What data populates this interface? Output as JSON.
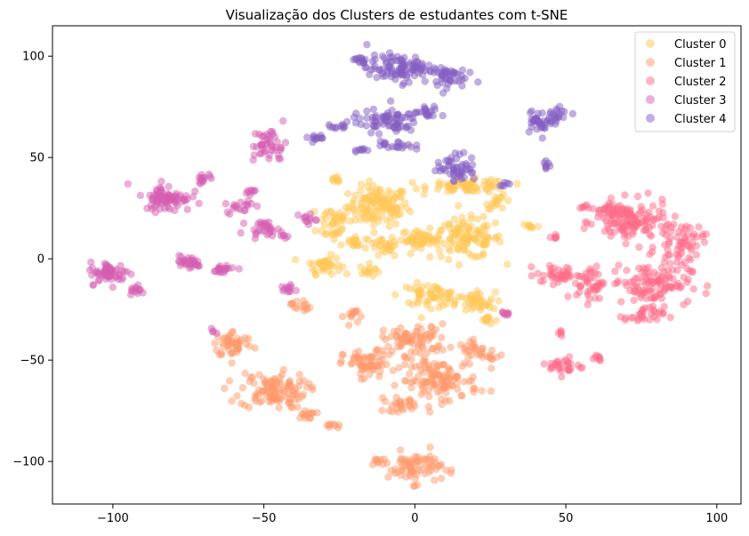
{
  "chart_data": {
    "type": "scatter",
    "title": "Visualização dos Clusters de estudantes com t-SNE",
    "xlabel": "",
    "ylabel": "",
    "xlim": [
      -120,
      108
    ],
    "ylim": [
      -121,
      115
    ],
    "x_ticks": [
      -100,
      -50,
      0,
      50,
      100
    ],
    "y_ticks": [
      -100,
      -50,
      0,
      50,
      100
    ],
    "grid": false,
    "legend": "top-right",
    "marker_alpha": 0.5,
    "series": [
      {
        "name": "Cluster 0",
        "color": "#ffc857",
        "blobs": [
          {
            "cx": -12,
            "cy": 26,
            "rx": 9,
            "ry": 9,
            "n": 120
          },
          {
            "cx": -27,
            "cy": 18,
            "rx": 5,
            "ry": 9,
            "n": 40
          },
          {
            "cx": -30,
            "cy": -3,
            "rx": 5,
            "ry": 4,
            "n": 40
          },
          {
            "cx": -15,
            "cy": -6,
            "rx": 3,
            "ry": 3,
            "n": 14
          },
          {
            "cx": -20,
            "cy": 8,
            "rx": 4,
            "ry": 3,
            "n": 20
          },
          {
            "cx": 2,
            "cy": 10,
            "rx": 6,
            "ry": 4,
            "n": 50
          },
          {
            "cx": 17,
            "cy": 10,
            "rx": 11,
            "ry": 9,
            "n": 110
          },
          {
            "cx": -10,
            "cy": 5,
            "rx": 4,
            "ry": 4,
            "n": 24
          },
          {
            "cx": 18,
            "cy": 36,
            "rx": 12,
            "ry": 3,
            "n": 70
          },
          {
            "cx": 28,
            "cy": 28,
            "rx": 4,
            "ry": 3,
            "n": 16
          },
          {
            "cx": 5,
            "cy": -18,
            "rx": 9,
            "ry": 5,
            "n": 60
          },
          {
            "cx": 20,
            "cy": -22,
            "rx": 6,
            "ry": 5,
            "n": 40
          },
          {
            "cx": 24,
            "cy": -30,
            "rx": 3,
            "ry": 2,
            "n": 12
          },
          {
            "cx": 38,
            "cy": 16,
            "rx": 3,
            "ry": 2,
            "n": 8
          },
          {
            "cx": -26,
            "cy": 39,
            "rx": 2,
            "ry": 2,
            "n": 8
          }
        ]
      },
      {
        "name": "Cluster 1",
        "color": "#ff9a6c",
        "blobs": [
          {
            "cx": -60,
            "cy": -42,
            "rx": 6,
            "ry": 6,
            "n": 50
          },
          {
            "cx": -47,
            "cy": -65,
            "rx": 10,
            "ry": 8,
            "n": 110
          },
          {
            "cx": -36,
            "cy": -77,
            "rx": 3,
            "ry": 2,
            "n": 14
          },
          {
            "cx": -27,
            "cy": -82,
            "rx": 2,
            "ry": 2,
            "n": 8
          },
          {
            "cx": -38,
            "cy": -23,
            "rx": 3,
            "ry": 3,
            "n": 14
          },
          {
            "cx": -16,
            "cy": -52,
            "rx": 7,
            "ry": 6,
            "n": 60
          },
          {
            "cx": 0,
            "cy": -40,
            "rx": 10,
            "ry": 7,
            "n": 80
          },
          {
            "cx": 8,
            "cy": -60,
            "rx": 12,
            "ry": 9,
            "n": 120
          },
          {
            "cx": -5,
            "cy": -72,
            "rx": 5,
            "ry": 3,
            "n": 25
          },
          {
            "cx": 20,
            "cy": -45,
            "rx": 5,
            "ry": 4,
            "n": 25
          },
          {
            "cx": -20,
            "cy": -28,
            "rx": 3,
            "ry": 4,
            "n": 14
          },
          {
            "cx": 26,
            "cy": -49,
            "rx": 3,
            "ry": 2,
            "n": 8
          },
          {
            "cx": 0,
            "cy": -103,
            "rx": 8,
            "ry": 7,
            "n": 70
          },
          {
            "cx": -12,
            "cy": -100,
            "rx": 3,
            "ry": 2,
            "n": 10
          }
        ]
      },
      {
        "name": "Cluster 2",
        "color": "#ff6b8a",
        "blobs": [
          {
            "cx": 72,
            "cy": 18,
            "rx": 11,
            "ry": 9,
            "n": 120
          },
          {
            "cx": 88,
            "cy": 8,
            "rx": 7,
            "ry": 9,
            "n": 60
          },
          {
            "cx": 78,
            "cy": -12,
            "rx": 12,
            "ry": 9,
            "n": 110
          },
          {
            "cx": 76,
            "cy": -28,
            "rx": 6,
            "ry": 4,
            "n": 30
          },
          {
            "cx": 64,
            "cy": 24,
            "rx": 5,
            "ry": 3,
            "n": 30
          },
          {
            "cx": 48,
            "cy": -8,
            "rx": 7,
            "ry": 4,
            "n": 40
          },
          {
            "cx": 58,
            "cy": -12,
            "rx": 4,
            "ry": 8,
            "n": 40
          },
          {
            "cx": 50,
            "cy": -53,
            "rx": 5,
            "ry": 4,
            "n": 30
          },
          {
            "cx": 60,
            "cy": -49,
            "rx": 2,
            "ry": 2,
            "n": 8
          },
          {
            "cx": 46,
            "cy": 11,
            "rx": 2,
            "ry": 2,
            "n": 6
          },
          {
            "cx": 48,
            "cy": -36,
            "rx": 1,
            "ry": 2,
            "n": 5
          },
          {
            "cx": 30,
            "cy": -27,
            "rx": 2,
            "ry": 1,
            "n": 5
          },
          {
            "cx": 56,
            "cy": 26,
            "rx": 2,
            "ry": 1,
            "n": 5
          }
        ]
      },
      {
        "name": "Cluster 3",
        "color": "#d65db1",
        "blobs": [
          {
            "cx": -101,
            "cy": -7,
            "rx": 6,
            "ry": 5,
            "n": 60
          },
          {
            "cx": -92,
            "cy": -16,
            "rx": 2,
            "ry": 2,
            "n": 12
          },
          {
            "cx": -82,
            "cy": 30,
            "rx": 7,
            "ry": 6,
            "n": 80
          },
          {
            "cx": -70,
            "cy": 40,
            "rx": 3,
            "ry": 2,
            "n": 14
          },
          {
            "cx": -75,
            "cy": -2,
            "rx": 4,
            "ry": 3,
            "n": 30
          },
          {
            "cx": -64,
            "cy": -5,
            "rx": 5,
            "ry": 2,
            "n": 20
          },
          {
            "cx": -58,
            "cy": 26,
            "rx": 4,
            "ry": 3,
            "n": 18
          },
          {
            "cx": -55,
            "cy": 33,
            "rx": 2,
            "ry": 2,
            "n": 8
          },
          {
            "cx": -50,
            "cy": 15,
            "rx": 5,
            "ry": 3,
            "n": 30
          },
          {
            "cx": -48,
            "cy": 56,
            "rx": 5,
            "ry": 8,
            "n": 45
          },
          {
            "cx": -43,
            "cy": 11,
            "rx": 1,
            "ry": 2,
            "n": 5
          },
          {
            "cx": -42,
            "cy": -15,
            "rx": 3,
            "ry": 2,
            "n": 12
          },
          {
            "cx": -36,
            "cy": 20,
            "rx": 3,
            "ry": 3,
            "n": 12
          },
          {
            "cx": -67,
            "cy": -36,
            "rx": 1,
            "ry": 2,
            "n": 4
          },
          {
            "cx": 30,
            "cy": -27,
            "rx": 1,
            "ry": 1,
            "n": 4
          }
        ]
      },
      {
        "name": "Cluster 4",
        "color": "#845ec2",
        "blobs": [
          {
            "cx": -5,
            "cy": 94,
            "rx": 10,
            "ry": 6,
            "n": 100
          },
          {
            "cx": 10,
            "cy": 90,
            "rx": 6,
            "ry": 5,
            "n": 40
          },
          {
            "cx": -18,
            "cy": 98,
            "rx": 3,
            "ry": 2,
            "n": 14
          },
          {
            "cx": -10,
            "cy": 68,
            "rx": 10,
            "ry": 5,
            "n": 70
          },
          {
            "cx": 4,
            "cy": 72,
            "rx": 4,
            "ry": 3,
            "n": 20
          },
          {
            "cx": -25,
            "cy": 65,
            "rx": 3,
            "ry": 1,
            "n": 10
          },
          {
            "cx": -33,
            "cy": 60,
            "rx": 3,
            "ry": 2,
            "n": 12
          },
          {
            "cx": -6,
            "cy": 56,
            "rx": 5,
            "ry": 2,
            "n": 20
          },
          {
            "cx": -18,
            "cy": 54,
            "rx": 2,
            "ry": 2,
            "n": 8
          },
          {
            "cx": 14,
            "cy": 45,
            "rx": 6,
            "ry": 6,
            "n": 50
          },
          {
            "cx": 42,
            "cy": 68,
            "rx": 5,
            "ry": 5,
            "n": 40
          },
          {
            "cx": 48,
            "cy": 72,
            "rx": 3,
            "ry": 3,
            "n": 14
          },
          {
            "cx": 44,
            "cy": 46,
            "rx": 2,
            "ry": 2,
            "n": 8
          },
          {
            "cx": 30,
            "cy": 37,
            "rx": 2,
            "ry": 1,
            "n": 6
          }
        ]
      }
    ]
  }
}
